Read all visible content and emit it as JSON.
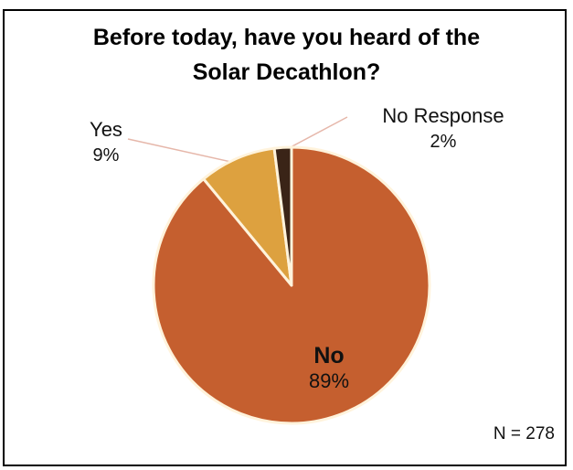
{
  "chart_data": {
    "type": "pie",
    "title_lines": [
      "Before today, have you heard of the",
      "Solar Decathlon?"
    ],
    "slices": [
      {
        "name": "No",
        "value": 89,
        "label": "89%",
        "color": "#C55F2F"
      },
      {
        "name": "Yes",
        "value": 9,
        "label": "9%",
        "color": "#DDA13F"
      },
      {
        "name": "No Response",
        "value": 2,
        "label": "2%",
        "color": "#3A2417"
      }
    ],
    "note": "N = 278"
  }
}
